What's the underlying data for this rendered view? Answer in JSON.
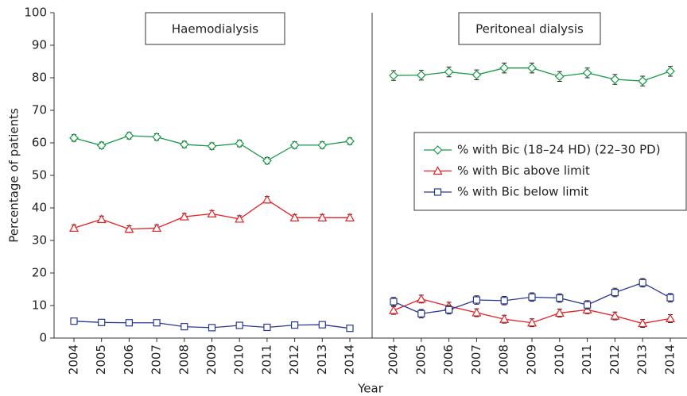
{
  "chart_data": {
    "type": "line",
    "ylabel": "Percentage of patients",
    "xlabel": "Year",
    "ylim": [
      0,
      100
    ],
    "yticks": [
      0,
      10,
      20,
      30,
      40,
      50,
      60,
      70,
      80,
      90,
      100
    ],
    "legend": "right",
    "series": [
      {
        "name": "% with Bic (18–24 HD) (22–30 PD)",
        "color": "#1a9a48",
        "marker": "diamond"
      },
      {
        "name": "% with Bic above limit",
        "color": "#e32227",
        "marker": "triangle"
      },
      {
        "name": "% with Bic below limit",
        "color": "#2a3990",
        "marker": "square"
      }
    ],
    "panels": [
      {
        "title": "Haemodialysis",
        "categories": [
          "2004",
          "2005",
          "2006",
          "2007",
          "2008",
          "2009",
          "2010",
          "2011",
          "2012",
          "2013",
          "2014"
        ],
        "series": [
          {
            "values": [
              61.5,
              59.2,
              62.2,
              61.8,
              59.5,
              59.0,
              59.8,
              54.5,
              59.3,
              59.3,
              60.5
            ],
            "errors": [
              1.0,
              1.0,
              1.0,
              1.0,
              1.0,
              1.0,
              1.0,
              1.0,
              1.0,
              1.0,
              1.0
            ]
          },
          {
            "values": [
              33.8,
              36.5,
              33.5,
              33.8,
              37.3,
              38.2,
              36.6,
              42.5,
              37.0,
              37.0,
              37.0
            ],
            "errors": [
              1.0,
              1.0,
              1.0,
              1.0,
              1.0,
              1.0,
              1.0,
              1.0,
              1.0,
              1.0,
              1.0
            ]
          },
          {
            "values": [
              5.2,
              4.8,
              4.7,
              4.7,
              3.5,
              3.2,
              3.9,
              3.3,
              4.0,
              4.1,
              3.0
            ],
            "errors": [
              0.4,
              0.4,
              0.4,
              0.4,
              0.4,
              0.4,
              0.4,
              0.4,
              0.4,
              0.4,
              0.4
            ]
          }
        ]
      },
      {
        "title": "Peritoneal dialysis",
        "categories": [
          "2004",
          "2005",
          "2006",
          "2007",
          "2008",
          "2009",
          "2010",
          "2011",
          "2012",
          "2013",
          "2014"
        ],
        "series": [
          {
            "values": [
              80.7,
              80.8,
              81.8,
              80.9,
              83.0,
              83.0,
              80.4,
              81.5,
              79.5,
              79.0,
              82.0
            ],
            "errors": [
              1.5,
              1.5,
              1.5,
              1.5,
              1.5,
              1.5,
              1.5,
              1.5,
              1.5,
              1.5,
              1.5
            ]
          },
          {
            "values": [
              8.5,
              12.0,
              9.8,
              7.8,
              5.8,
              4.7,
              7.7,
              8.7,
              6.8,
              4.5,
              6.0
            ],
            "errors": [
              1.2,
              1.2,
              1.2,
              1.2,
              1.2,
              1.2,
              1.2,
              1.2,
              1.2,
              1.2,
              1.2
            ]
          },
          {
            "values": [
              11.2,
              7.5,
              8.7,
              11.7,
              11.5,
              12.6,
              12.3,
              10.2,
              14.0,
              17.0,
              12.4
            ],
            "errors": [
              1.3,
              1.3,
              1.3,
              1.3,
              1.3,
              1.3,
              1.3,
              1.3,
              1.3,
              1.3,
              1.3
            ]
          }
        ]
      }
    ]
  }
}
